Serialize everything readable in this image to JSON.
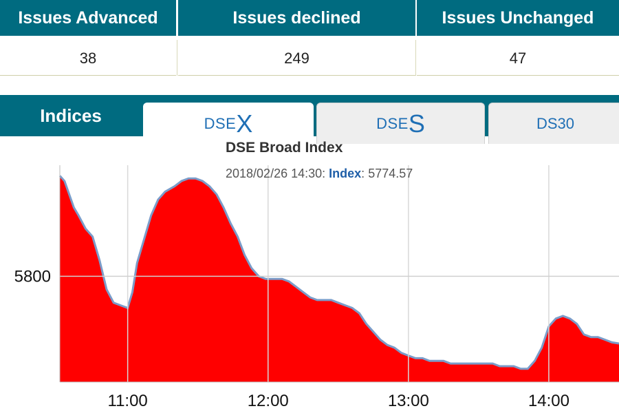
{
  "breadth": {
    "advanced_label": "Issues Advanced",
    "declined_label": "Issues declined",
    "unchanged_label": "Issues Unchanged",
    "advanced": "38",
    "declined": "249",
    "unchanged": "47"
  },
  "tabs": {
    "indices_label": "Indices",
    "dsex": {
      "prefix": "DSE",
      "suffix": "X"
    },
    "dses": {
      "prefix": "DSE",
      "suffix": "S"
    },
    "ds30": "DS30",
    "active": "DSEX"
  },
  "tooltip": {
    "datetime": "2018/02/26 14:30:",
    "key": "Index",
    "value": "5774.57"
  },
  "colors": {
    "header_teal": "#006b80",
    "area_fill": "#ff0000",
    "line": "#7b9cc9",
    "tab_text": "#1f6fb5"
  },
  "chart_data": {
    "type": "area",
    "title": "DSE Broad Index",
    "x_ticks": [
      "11:00",
      "12:00",
      "13:00",
      "14:00"
    ],
    "y_ticks": [
      "5800"
    ],
    "grid": true,
    "series": [
      {
        "x": [
          "10:31",
          "10:33",
          "10:35",
          "10:37",
          "10:39",
          "10:42",
          "10:45",
          "10:48",
          "10:51",
          "10:54",
          "10:57",
          "11:00",
          "11:02",
          "11:04",
          "11:07",
          "11:10",
          "11:13",
          "11:16",
          "11:20",
          "11:23",
          "11:26",
          "11:29",
          "11:32",
          "11:35",
          "11:38",
          "11:41",
          "11:44",
          "11:47",
          "11:50",
          "11:53",
          "11:56",
          "11:59",
          "12:00",
          "12:03",
          "12:06",
          "12:09",
          "12:12",
          "12:15",
          "12:18",
          "12:21",
          "12:24",
          "12:27",
          "12:30",
          "12:33",
          "12:36",
          "12:39",
          "12:42",
          "12:45",
          "12:48",
          "12:51",
          "12:54",
          "12:57",
          "13:00",
          "13:03",
          "13:06",
          "13:09",
          "13:12",
          "13:15",
          "13:18",
          "13:21",
          "13:24",
          "13:27",
          "13:30",
          "13:33",
          "13:36",
          "13:39",
          "13:42",
          "13:45",
          "13:48",
          "13:51",
          "13:54",
          "13:57",
          "14:00",
          "14:03",
          "14:06",
          "14:09",
          "14:12",
          "14:15",
          "14:18",
          "14:21",
          "14:24",
          "14:27",
          "14:30"
        ],
        "y": [
          5838,
          5836,
          5831,
          5826,
          5823,
          5818,
          5815,
          5806,
          5795,
          5790,
          5789,
          5788,
          5794,
          5805,
          5814,
          5823,
          5829,
          5832,
          5834,
          5836,
          5837,
          5837,
          5836,
          5834,
          5831,
          5826,
          5820,
          5815,
          5808,
          5803,
          5800,
          5799,
          5799,
          5799,
          5799,
          5798,
          5796,
          5794,
          5792,
          5791,
          5791,
          5791,
          5790,
          5789,
          5788,
          5786,
          5782,
          5779,
          5776,
          5774,
          5773,
          5771,
          5770,
          5769,
          5769,
          5768,
          5768,
          5768,
          5767,
          5767,
          5767,
          5767,
          5767,
          5767,
          5767,
          5766,
          5766,
          5766,
          5765,
          5765,
          5768,
          5773,
          5781,
          5784,
          5785,
          5784,
          5782,
          5778,
          5777,
          5777,
          5776,
          5775,
          5774.57
        ]
      }
    ]
  }
}
